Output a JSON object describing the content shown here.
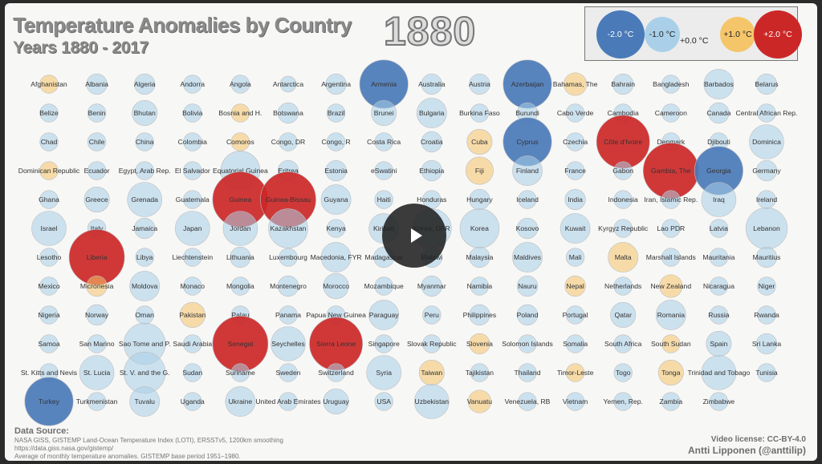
{
  "header": {
    "title": "Temperature Anomalies by Country",
    "subtitle": "Years 1880 - 2017",
    "year": "1880"
  },
  "legend": {
    "items": [
      {
        "label": "-2.0 °C",
        "value": -2.0
      },
      {
        "label": "-1.0 °C",
        "value": -1.0
      },
      {
        "label": "+0.0 °C",
        "value": 0.0
      },
      {
        "label": "+1.0 °C",
        "value": 1.0
      },
      {
        "label": "+2.0 °C",
        "value": 2.0
      }
    ]
  },
  "colors": {
    "cold": "#4a7ab8",
    "cool": "#a9d0e8",
    "warm": "#f5c56a",
    "hot": "#cc2727"
  },
  "chart_data": {
    "type": "scatter",
    "title": "Temperature Anomalies by Country",
    "subtitle": "Years 1880 - 2017",
    "year": "1880",
    "unit": "°C",
    "columns": 16,
    "countries": [
      [
        "Afghanistan",
        0.3
      ],
      [
        "Albania",
        -0.4
      ],
      [
        "Algeria",
        -0.4
      ],
      [
        "Andorra",
        -0.3
      ],
      [
        "Angola",
        -0.3
      ],
      [
        "Antarctica",
        -0.2
      ],
      [
        "Argentina",
        -0.4
      ],
      [
        "Armenia",
        -1.6
      ],
      [
        "Australia",
        -0.4
      ],
      [
        "Austria",
        -0.4
      ],
      [
        "Azerbaijan",
        -1.6
      ],
      [
        "Bahamas, The",
        0.5
      ],
      [
        "Bahrain",
        -0.4
      ],
      [
        "Bangladesh",
        -0.3
      ],
      [
        "Barbados",
        -0.8
      ],
      [
        "Belarus",
        -0.4
      ],
      [
        "Belize",
        -0.3
      ],
      [
        "Benin",
        -0.3
      ],
      [
        "Bhutan",
        -0.6
      ],
      [
        "Bolivia",
        -0.3
      ],
      [
        "Bosnia and H.",
        0.3
      ],
      [
        "Botswana",
        -0.4
      ],
      [
        "Brazil",
        -0.3
      ],
      [
        "Brunei",
        -0.6
      ],
      [
        "Bulgaria",
        -0.8
      ],
      [
        "Burkina Faso",
        -0.3
      ],
      [
        "Burundi",
        -0.4
      ],
      [
        "Cabo Verde",
        -0.3
      ],
      [
        "Cambodia",
        -0.3
      ],
      [
        "Cameroon",
        -0.3
      ],
      [
        "Canada",
        -0.4
      ],
      [
        "Central African Rep.",
        -0.3
      ],
      [
        "Chad",
        -0.3
      ],
      [
        "Chile",
        -0.3
      ],
      [
        "China",
        -0.3
      ],
      [
        "Colombia",
        -0.3
      ],
      [
        "Comoros",
        0.3
      ],
      [
        "Congo, DR",
        -0.3
      ],
      [
        "Congo, R",
        -0.3
      ],
      [
        "Costa Rica",
        -0.3
      ],
      [
        "Croatia",
        -0.4
      ],
      [
        "Cuba",
        0.6
      ],
      [
        "Cyprus",
        -1.6
      ],
      [
        "Czechia",
        -0.3
      ],
      [
        "Côte d'Ivoire",
        1.8
      ],
      [
        "Denmark",
        -0.3
      ],
      [
        "Djibouti",
        -0.3
      ],
      [
        "Dominica",
        -1.0
      ],
      [
        "Dominican Republic",
        0.3
      ],
      [
        "Ecuador",
        -0.3
      ],
      [
        "Egypt, Arab Rep.",
        -0.3
      ],
      [
        "El Salvador",
        -0.3
      ],
      [
        "Equatorial Guinea",
        -1.2
      ],
      [
        "Eritrea",
        -0.4
      ],
      [
        "Estonia",
        -0.4
      ],
      [
        "eSwatini",
        -0.3
      ],
      [
        "Ethiopia",
        -0.4
      ],
      [
        "Fiji",
        0.7
      ],
      [
        "Finland",
        -0.8
      ],
      [
        "France",
        -0.3
      ],
      [
        "Gabon",
        -0.3
      ],
      [
        "Gambia, The",
        1.9
      ],
      [
        "Georgia",
        -1.6
      ],
      [
        "Germany",
        -0.4
      ],
      [
        "Ghana",
        -0.3
      ],
      [
        "Greece",
        -0.6
      ],
      [
        "Grenada",
        -1.0
      ],
      [
        "Guatemala",
        -0.3
      ],
      [
        "Guinea",
        1.9
      ],
      [
        "Guinea-Bissau",
        1.9
      ],
      [
        "Guyana",
        -0.8
      ],
      [
        "Haiti",
        -0.3
      ],
      [
        "Honduras",
        -0.3
      ],
      [
        "Hungary",
        -0.4
      ],
      [
        "Iceland",
        -0.3
      ],
      [
        "India",
        -0.4
      ],
      [
        "Indonesia",
        -0.3
      ],
      [
        "Iran, Islamic Rep.",
        -0.3
      ],
      [
        "Iraq",
        -1.0
      ],
      [
        "Ireland",
        -0.3
      ],
      [
        "Israel",
        -1.0
      ],
      [
        "Italy",
        -0.3
      ],
      [
        "Jamaica",
        -0.4
      ],
      [
        "Japan",
        -1.0
      ],
      [
        "Jordan",
        -1.0
      ],
      [
        "Kazakhstan",
        -1.2
      ],
      [
        "Kenya",
        -0.3
      ],
      [
        "Kiribati",
        -0.8
      ],
      [
        "Korea, DPR",
        -1.2
      ],
      [
        "Korea",
        -1.2
      ],
      [
        "Kosovo",
        -0.4
      ],
      [
        "Kuwait",
        -0.8
      ],
      [
        "Kyrgyz Republic",
        -0.3
      ],
      [
        "Lao PDR",
        -0.3
      ],
      [
        "Latvia",
        -0.3
      ],
      [
        "Lebanon",
        -1.3
      ],
      [
        "Lesotho",
        -0.3
      ],
      [
        "Liberia",
        1.9
      ],
      [
        "Libya",
        -0.3
      ],
      [
        "Liechtenstein",
        -0.3
      ],
      [
        "Lithuania",
        -0.4
      ],
      [
        "Luxembourg",
        -0.3
      ],
      [
        "Macedonia, FYR",
        -0.8
      ],
      [
        "Madagascar",
        -0.4
      ],
      [
        "Malawi",
        -0.4
      ],
      [
        "Malaysia",
        -0.4
      ],
      [
        "Maldives",
        -0.8
      ],
      [
        "Mali",
        -0.3
      ],
      [
        "Malta",
        0.8
      ],
      [
        "Marshall Islands",
        -0.3
      ],
      [
        "Mauritania",
        -0.3
      ],
      [
        "Mauritius",
        -0.4
      ],
      [
        "Mexico",
        -0.3
      ],
      [
        "Micronesia",
        0.4
      ],
      [
        "Moldova",
        -0.8
      ],
      [
        "Monaco",
        -0.3
      ],
      [
        "Mongolia",
        -0.3
      ],
      [
        "Montenegro",
        -0.4
      ],
      [
        "Morocco",
        -0.6
      ],
      [
        "Mozambique",
        -0.3
      ],
      [
        "Myanmar",
        -0.4
      ],
      [
        "Namibia",
        -0.3
      ],
      [
        "Nauru",
        -0.4
      ],
      [
        "Nepal",
        0.4
      ],
      [
        "Netherlands",
        -0.3
      ],
      [
        "New Zealand",
        0.5
      ],
      [
        "Nicaragua",
        -0.3
      ],
      [
        "Niger",
        -0.3
      ],
      [
        "Nigeria",
        -0.3
      ],
      [
        "Norway",
        -0.4
      ],
      [
        "Oman",
        -0.3
      ],
      [
        "Pakistan",
        0.6
      ],
      [
        "Palau",
        -0.3
      ],
      [
        "Panama",
        -0.3
      ],
      [
        "Papua New Guinea",
        -0.3
      ],
      [
        "Paraguay",
        -0.8
      ],
      [
        "Peru",
        -0.3
      ],
      [
        "Philippines",
        -0.4
      ],
      [
        "Poland",
        -0.4
      ],
      [
        "Portugal",
        -0.3
      ],
      [
        "Qatar",
        -0.6
      ],
      [
        "Romania",
        -0.8
      ],
      [
        "Russia",
        -0.3
      ],
      [
        "Rwanda",
        -0.3
      ],
      [
        "Samoa",
        -0.3
      ],
      [
        "San Marino",
        -0.3
      ],
      [
        "Sao Tome and P.",
        -1.3
      ],
      [
        "Saudi Arabia",
        -0.3
      ],
      [
        "Senegal",
        1.9
      ],
      [
        "Seychelles",
        -1.0
      ],
      [
        "Sierra Leone",
        1.8
      ],
      [
        "Singapore",
        -0.3
      ],
      [
        "Slovak Republic",
        -0.3
      ],
      [
        "Slovenia",
        0.4
      ],
      [
        "Solomon Islands",
        -0.3
      ],
      [
        "Somalia",
        -0.3
      ],
      [
        "South Africa",
        -0.3
      ],
      [
        "South Sudan",
        0.3
      ],
      [
        "Spain",
        -0.6
      ],
      [
        "Sri Lanka",
        -0.4
      ],
      [
        "St. Kitts and Nevis",
        -0.3
      ],
      [
        "St. Lucia",
        -1.0
      ],
      [
        "St. V. and the G.",
        -1.3
      ],
      [
        "Sudan",
        -0.3
      ],
      [
        "Suriname",
        -0.3
      ],
      [
        "Sweden",
        -0.3
      ],
      [
        "Switzerland",
        -0.3
      ],
      [
        "Syria",
        -1.0
      ],
      [
        "Taiwan",
        0.6
      ],
      [
        "Tajikistan",
        -0.3
      ],
      [
        "Thailand",
        -0.3
      ],
      [
        "Timor-Leste",
        0.3
      ],
      [
        "Togo",
        -0.3
      ],
      [
        "Tonga",
        0.6
      ],
      [
        "Trinidad and Tobago",
        -1.0
      ],
      [
        "Tunisia",
        -0.3
      ],
      [
        "Turkey",
        -1.6
      ],
      [
        "Turkmenistan",
        -0.3
      ],
      [
        "Tuvalu",
        -0.8
      ],
      [
        "Uganda",
        -0.3
      ],
      [
        "Ukraine",
        -0.8
      ],
      [
        "United Arab Emirates",
        -0.3
      ],
      [
        "Uruguay",
        -0.6
      ],
      [
        "USA",
        -0.3
      ],
      [
        "Uzbekistan",
        -1.0
      ],
      [
        "Vanuatu",
        0.5
      ],
      [
        "Venezuela, RB",
        -0.3
      ],
      [
        "Vietnam",
        -0.3
      ],
      [
        "Yemen, Rep.",
        -0.3
      ],
      [
        "Zambia",
        -0.3
      ],
      [
        "Zimbabwe",
        -0.3
      ]
    ]
  },
  "source": {
    "heading": "Data Source:",
    "line1": "NASA GISS, GISTEMP Land-Ocean Temperature Index (LOTI), ERSSTv5, 1200km smoothing",
    "line2": "https://data.giss.nasa.gov/gistemp/",
    "line3": "Average of monthly temperature anomalies. GISTEMP base period 1951–1980."
  },
  "credits": {
    "license": "Video license: CC-BY-4.0",
    "author": "Antti Lipponen (@anttilip)"
  },
  "player": {
    "play_icon": "play-icon"
  }
}
